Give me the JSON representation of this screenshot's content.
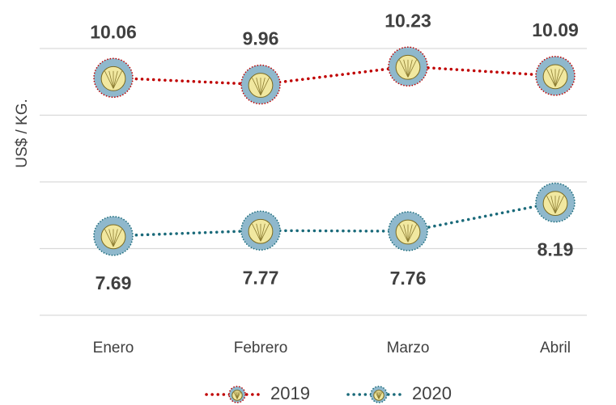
{
  "chart_data": {
    "type": "line",
    "y_label": "US$ / KG.",
    "categories": [
      "Enero",
      "Febrero",
      "Marzo",
      "Abril"
    ],
    "series": [
      {
        "name": "2019",
        "color": "#c00000",
        "values": [
          10.06,
          9.96,
          10.23,
          10.09
        ]
      },
      {
        "name": "2020",
        "color": "#1a6a7a",
        "values": [
          7.69,
          7.77,
          7.76,
          8.19
        ]
      }
    ],
    "ylim": [
      6.5,
      10.5
    ],
    "yticks": [
      6.5,
      7.5,
      8.5,
      9.5,
      10.5
    ],
    "grid": true
  }
}
